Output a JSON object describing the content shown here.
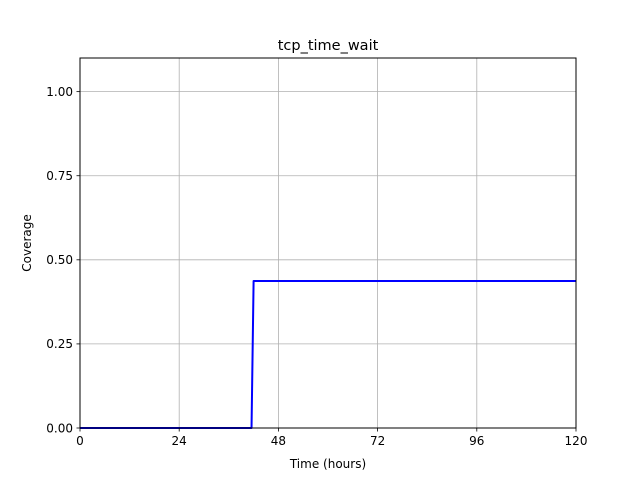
{
  "chart_data": {
    "type": "line",
    "title": "tcp_time_wait",
    "xlabel": "Time (hours)",
    "ylabel": "Coverage",
    "xlim": [
      0,
      120
    ],
    "ylim": [
      0,
      1.1
    ],
    "xticks": [
      0,
      24,
      48,
      72,
      96,
      120
    ],
    "xtick_labels": [
      "0",
      "24",
      "48",
      "72",
      "96",
      "120"
    ],
    "yticks": [
      0,
      0.25,
      0.5,
      0.75,
      1.0
    ],
    "ytick_labels": [
      "0.00",
      "0.25",
      "0.50",
      "0.75",
      "1.00"
    ],
    "grid": true,
    "series": [
      {
        "color": "#0000ff",
        "x": [
          0,
          41.5,
          42.0,
          120
        ],
        "y": [
          0,
          0,
          0.437,
          0.437
        ]
      }
    ]
  }
}
